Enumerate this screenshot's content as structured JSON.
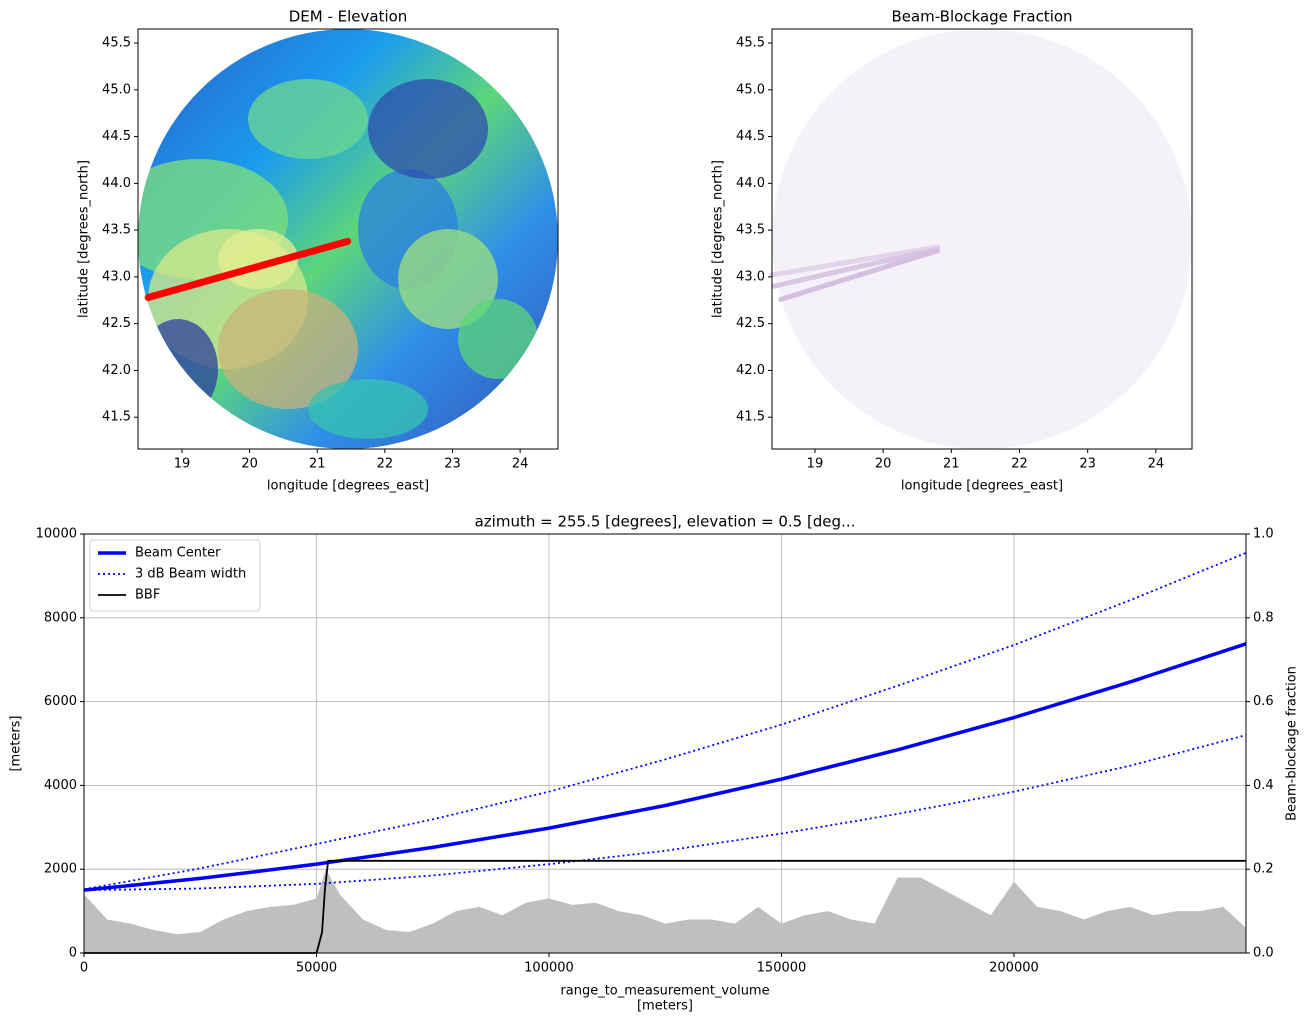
{
  "chart_data": [
    {
      "type": "map",
      "title": "DEM - Elevation",
      "xlabel": "longitude [degrees_east]",
      "ylabel": "latitude [degrees_north]",
      "xlim": [
        18.35,
        24.56
      ],
      "ylim": [
        41.16,
        45.65
      ],
      "xticks": [
        19,
        20,
        21,
        22,
        23,
        24
      ],
      "yticks": [
        41.5,
        {
          "value": 42,
          "label": "42.0"
        },
        42.5,
        {
          "value": 43,
          "label": "43.0"
        },
        43.5,
        {
          "value": 44,
          "label": "44.0"
        },
        44.5,
        {
          "value": 45,
          "label": "45.0"
        },
        45.5
      ],
      "series": [
        {
          "color": "#ff0000",
          "linewidth": 7,
          "x": [
            18.5,
            21.45
          ],
          "values": [
            42.78,
            43.38
          ]
        }
      ]
    },
    {
      "type": "map",
      "title": "Beam-Blockage Fraction",
      "xlabel": "longitude [degrees_east]",
      "ylabel": "latitude [degrees_north]",
      "xlim": [
        18.37,
        24.53
      ],
      "ylim": [
        41.16,
        45.65
      ],
      "xticks": [
        19,
        20,
        21,
        22,
        23,
        24
      ],
      "yticks": [
        41.5,
        {
          "value": 42,
          "label": "42.0"
        },
        42.5,
        {
          "value": 43,
          "label": "43.0"
        },
        43.5,
        {
          "value": 44,
          "label": "44.0"
        },
        44.5,
        {
          "value": 45,
          "label": "45.0"
        },
        45.5
      ],
      "series": [
        {
          "color": "#e2d5ea",
          "linewidth": 5,
          "x": [
            20.8,
            18.37
          ],
          "values": [
            43.32,
            43.02
          ]
        },
        {
          "color": "#d9c6e3",
          "linewidth": 5,
          "x": [
            20.8,
            18.4
          ],
          "values": [
            43.3,
            42.9
          ]
        },
        {
          "color": "#d4bfe0",
          "linewidth": 5,
          "x": [
            20.8,
            18.5
          ],
          "values": [
            43.28,
            42.76
          ]
        }
      ]
    },
    {
      "type": "line",
      "title": "azimuth = 255.5 [degrees], elevation = 0.5 [deg...",
      "xlabel": [
        "range_to_measurement_volume",
        "[meters]"
      ],
      "ylabel": "[meters]",
      "y2label": "Beam-blockage fraction",
      "xlim": [
        0,
        249900
      ],
      "ylim": [
        0,
        10000
      ],
      "y2lim": [
        0,
        1
      ],
      "xticks": [
        0,
        50000,
        100000,
        150000,
        200000
      ],
      "yticks": [
        0,
        2000,
        4000,
        6000,
        8000,
        10000
      ],
      "y2ticks": [
        {
          "value": 0,
          "label": "0.0"
        },
        0.2,
        0.4,
        0.6,
        0.8,
        {
          "value": 1,
          "label": "1.0"
        }
      ],
      "grid": true,
      "legend": "upper left",
      "series": [
        {
          "type": "area",
          "color": "#bfbfbf",
          "x": [
            0,
            5000,
            10000,
            15000,
            20000,
            25000,
            30000,
            35000,
            40000,
            45000,
            50000,
            52000,
            55000,
            60000,
            65000,
            70000,
            75000,
            80000,
            85000,
            90000,
            95000,
            100000,
            105000,
            110000,
            115000,
            120000,
            125000,
            130000,
            135000,
            140000,
            145000,
            150000,
            155000,
            160000,
            165000,
            170000,
            175000,
            180000,
            185000,
            190000,
            195000,
            200000,
            205000,
            210000,
            215000,
            220000,
            225000,
            230000,
            235000,
            240000,
            245000,
            249900
          ],
          "values": [
            1400,
            800,
            700,
            550,
            450,
            500,
            800,
            1000,
            1100,
            1150,
            1300,
            2000,
            1400,
            800,
            550,
            500,
            700,
            1000,
            1100,
            900,
            1200,
            1300,
            1150,
            1200,
            1000,
            900,
            700,
            800,
            800,
            700,
            1100,
            700,
            900,
            1000,
            800,
            700,
            1800,
            1800,
            1500,
            1200,
            900,
            1700,
            1100,
            1000,
            800,
            1000,
            1100,
            900,
            1000,
            1000,
            1100,
            600
          ]
        },
        {
          "name": "Beam Center",
          "color": "#0000ff",
          "linewidth": 3.5,
          "style": "solid",
          "x": [
            0,
            25000,
            50000,
            75000,
            100000,
            125000,
            150000,
            175000,
            200000,
            225000,
            249900
          ],
          "values": [
            1500,
            1780,
            2120,
            2520,
            2980,
            3520,
            4150,
            4850,
            5620,
            6470,
            7380
          ]
        },
        {
          "name": "3 dB Beam width",
          "color": "#0000ff",
          "linewidth": 1.8,
          "style": "dotted",
          "x": [
            0,
            25000,
            50000,
            75000,
            100000,
            125000,
            150000,
            175000,
            200000,
            225000,
            249900
          ],
          "values": [
            1520,
            2020,
            2600,
            3190,
            3850,
            4620,
            5450,
            6380,
            7350,
            8420,
            9550
          ]
        },
        {
          "color": "#0000ff",
          "linewidth": 1.8,
          "style": "dotted",
          "x": [
            0,
            25000,
            50000,
            75000,
            100000,
            125000,
            150000,
            175000,
            200000,
            225000,
            249900
          ],
          "values": [
            1500,
            1540,
            1650,
            1850,
            2120,
            2440,
            2850,
            3320,
            3850,
            4470,
            5200
          ]
        },
        {
          "name": "BBF",
          "color": "#000000",
          "linewidth": 1.8,
          "style": "solid",
          "axis": "y2",
          "x": [
            0,
            50000,
            50500,
            51200,
            51800,
            52500,
            249900
          ],
          "values": [
            0,
            0,
            0.02,
            0.05,
            0.15,
            0.22,
            0.22
          ]
        }
      ]
    }
  ]
}
